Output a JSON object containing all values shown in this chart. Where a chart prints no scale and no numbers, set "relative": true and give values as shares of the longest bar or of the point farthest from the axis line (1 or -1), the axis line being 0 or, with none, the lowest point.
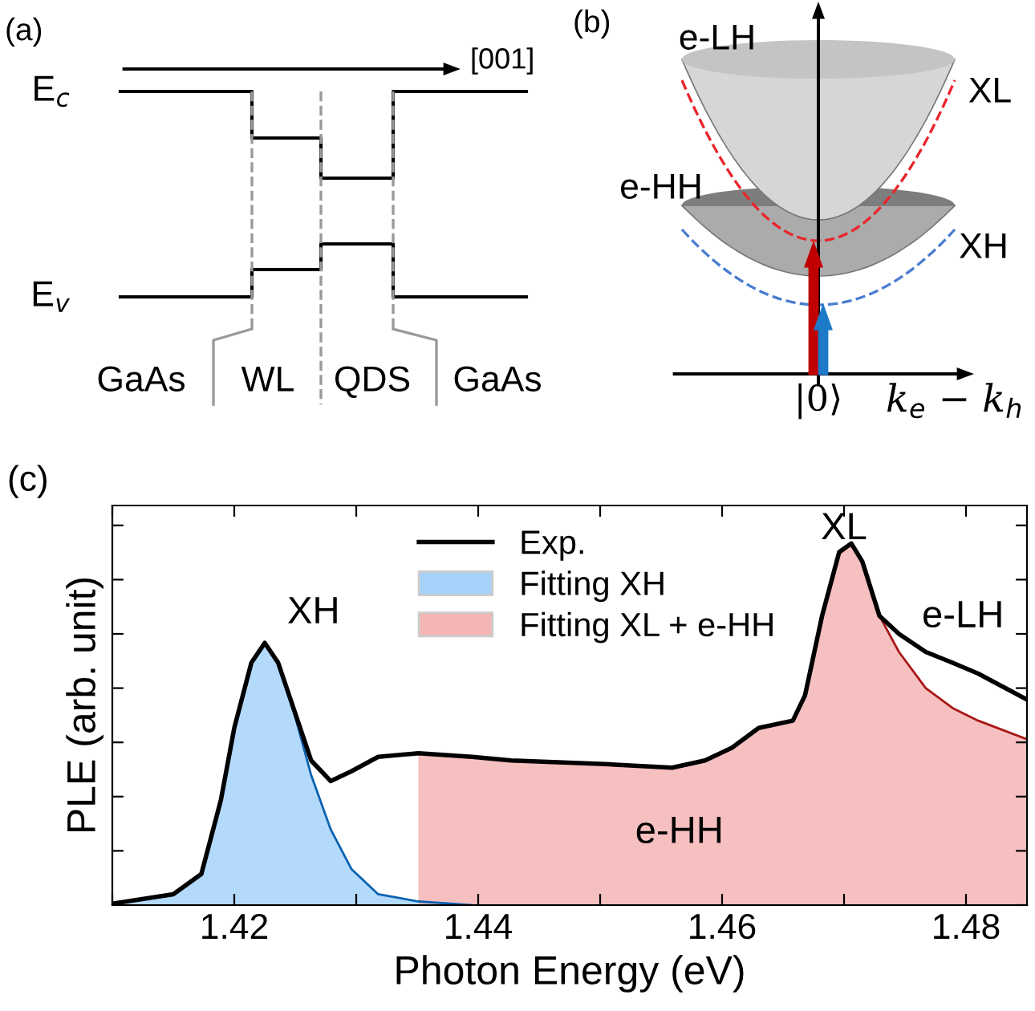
{
  "chart_data": [
    {
      "type": "other",
      "title": "(a)",
      "annotations": [
        "E$_{c}$",
        "E$_{v}$",
        "[001]",
        "GaAs",
        "WL",
        "QDS",
        "GaAs"
      ]
    },
    {
      "type": "other",
      "title": "(b)",
      "annotations": [
        "e-LH",
        "XL",
        "e-HH",
        "XH",
        "|0⟩",
        "k$_{e}$ − k$_{h}$"
      ]
    },
    {
      "type": "line",
      "title": "(c)",
      "xlabel": "Photon Energy (eV)",
      "ylabel": "PLE (arb. unit)",
      "relative": true,
      "legend": "top",
      "grid": false,
      "marker": "none",
      "line_style": "solid",
      "xlim": [
        1.41,
        1.485
      ],
      "xticks": [
        {
          "value": 1.41,
          "label": null
        },
        1.42,
        {
          "value": 1.43,
          "label": null
        },
        1.44,
        {
          "value": 1.45,
          "label": null
        },
        1.46,
        {
          "value": 1.47,
          "label": null
        },
        1.48
      ],
      "series": [
        {
          "name": "Fitting XH",
          "type": "area",
          "color": "#a6d2fa",
          "x": [
            1.41,
            1.415,
            1.4173,
            1.4189,
            1.42,
            1.4214,
            1.4225,
            1.4236,
            1.425,
            1.4263,
            1.4279,
            1.4296,
            1.4318,
            1.4351,
            1.4395
          ],
          "values": [
            0.004,
            0.03,
            0.086,
            0.29,
            0.49,
            0.67,
            0.725,
            0.67,
            0.52,
            0.36,
            0.21,
            0.1,
            0.03,
            0.01,
            0
          ]
        },
        {
          "name": "Fitting XL + e-HH",
          "type": "area",
          "color": "#f5b5b5",
          "x": [
            1.4351,
            1.4395,
            1.4427,
            1.4504,
            1.4559,
            1.4586,
            1.4608,
            1.463,
            1.4658,
            1.4668,
            1.4682,
            1.4696,
            1.4706,
            1.4715,
            1.4729,
            1.4745,
            1.4767,
            1.4789,
            1.481,
            1.4849
          ],
          "values": [
            0.42,
            0.41,
            0.4,
            0.39,
            0.38,
            0.4,
            0.435,
            0.49,
            0.51,
            0.58,
            0.8,
            0.976,
            1.0,
            0.95,
            0.8,
            0.7,
            0.6,
            0.545,
            0.51,
            0.46
          ]
        },
        {
          "name": "Exp.",
          "type": "line",
          "color": "#000000",
          "x": [
            1.41,
            1.415,
            1.4173,
            1.4189,
            1.42,
            1.4214,
            1.4225,
            1.4236,
            1.425,
            1.4263,
            1.4279,
            1.4296,
            1.4318,
            1.4351,
            1.4395,
            1.4427,
            1.4504,
            1.4559,
            1.4586,
            1.4608,
            1.463,
            1.4658,
            1.4668,
            1.4682,
            1.4696,
            1.4706,
            1.4715,
            1.4729,
            1.4745,
            1.4767,
            1.4789,
            1.481,
            1.4849
          ],
          "values": [
            0.004,
            0.03,
            0.086,
            0.29,
            0.49,
            0.67,
            0.725,
            0.67,
            0.53,
            0.4,
            0.343,
            0.37,
            0.41,
            0.42,
            0.41,
            0.4,
            0.39,
            0.38,
            0.4,
            0.435,
            0.49,
            0.51,
            0.58,
            0.8,
            0.976,
            1.0,
            0.95,
            0.8,
            0.75,
            0.7,
            0.67,
            0.64,
            0.57
          ]
        }
      ],
      "annotations": [
        "XH",
        "XL",
        "e-LH",
        "e-HH"
      ]
    }
  ]
}
